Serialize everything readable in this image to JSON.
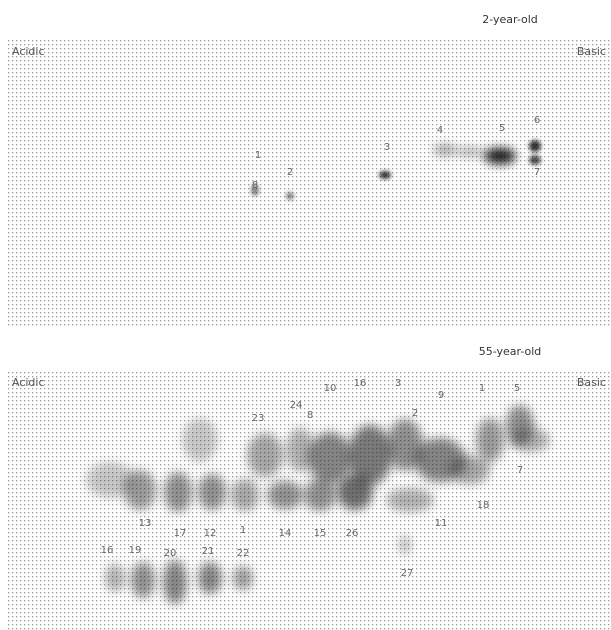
{
  "panels": [
    {
      "title": "2-year-old",
      "left_label": "Acidic",
      "right_label": "Basic",
      "spots": [
        "1",
        "2",
        "3",
        "4",
        "5",
        "6",
        "7",
        "8"
      ]
    },
    {
      "title": "55-year-old",
      "left_label": "Acidic",
      "right_label": "Basic",
      "spots": [
        "23",
        "24",
        "8",
        "10",
        "16",
        "3",
        "2",
        "9",
        "1",
        "5",
        "7",
        "18",
        "11",
        "13",
        "17",
        "12",
        "1",
        "14",
        "15",
        "26",
        "27",
        "16",
        "19",
        "20",
        "21",
        "22"
      ]
    }
  ]
}
